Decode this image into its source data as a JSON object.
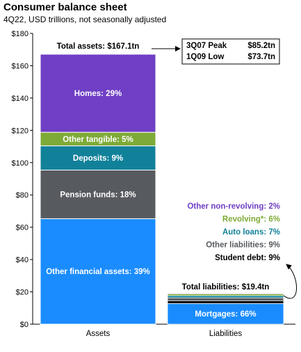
{
  "chart_data": {
    "type": "bar",
    "title": "Consumer balance sheet",
    "subtitle": "4Q22, USD trillions, not seasonally adjusted",
    "ylim": [
      0,
      180
    ],
    "yticks": [
      "$0",
      "$20",
      "$40",
      "$60",
      "$80",
      "$100",
      "$120",
      "$140",
      "$160",
      "$180"
    ],
    "categories": [
      "Assets",
      "Liabilities"
    ],
    "assets": {
      "total": 167.1,
      "total_label": "Total assets: $167.1tn",
      "segments": [
        {
          "name": "Other financial assets",
          "label": "Other financial assets: 39%",
          "share": 39,
          "value": 65.3,
          "color": "#1a8cff",
          "label_color": "#ffffff"
        },
        {
          "name": "Pension funds",
          "label": "Pension funds: 18%",
          "share": 18,
          "value": 30.1,
          "color": "#575a5e",
          "label_color": "#ffffff"
        },
        {
          "name": "Deposits",
          "label": "Deposits: 9%",
          "share": 9,
          "value": 15.0,
          "color": "#11819a",
          "label_color": "#ffffff"
        },
        {
          "name": "Other tangible",
          "label": "Other tangible: 5%",
          "share": 5,
          "value": 8.4,
          "color": "#7eaa37",
          "label_color": "#ffffff"
        },
        {
          "name": "Homes",
          "label": "Homes: 29%",
          "share": 29,
          "value": 48.3,
          "color": "#6f3fc4",
          "label_color": "#ffffff"
        }
      ]
    },
    "liabilities": {
      "total": 19.4,
      "total_label": "Total liabilities: $19.4tn",
      "segments": [
        {
          "name": "Mortgages",
          "label": "Mortgages: 66%",
          "share": 66,
          "value": 12.8,
          "color": "#1a8cff",
          "label_color": "#1a8cff"
        },
        {
          "name": "Student debt",
          "label": "Student debt: 9%",
          "share": 9,
          "value": 1.75,
          "color": "#000000",
          "label_color": "#000000"
        },
        {
          "name": "Other liabilities",
          "label": "Other liabilities: 9%",
          "share": 9,
          "value": 1.75,
          "color": "#575a5e",
          "label_color": "#575a5e"
        },
        {
          "name": "Auto loans",
          "label": "Auto loans: 7%",
          "share": 7,
          "value": 1.36,
          "color": "#11819a",
          "label_color": "#11819a"
        },
        {
          "name": "Revolving",
          "label": "Revolving*: 6%",
          "share": 6,
          "value": 1.16,
          "color": "#7eaa37",
          "label_color": "#7eaa37"
        },
        {
          "name": "Other non-revolving",
          "label": "Other non-revolving: 2%",
          "share": 2,
          "value": 0.39,
          "color": "#6f3fc4",
          "label_color": "#6f3fc4"
        }
      ]
    },
    "peak_table": {
      "rows": [
        {
          "period": "3Q07 Peak",
          "value": "$85.2tn"
        },
        {
          "period": "1Q09 Low",
          "value": "$73.7tn"
        }
      ]
    }
  }
}
